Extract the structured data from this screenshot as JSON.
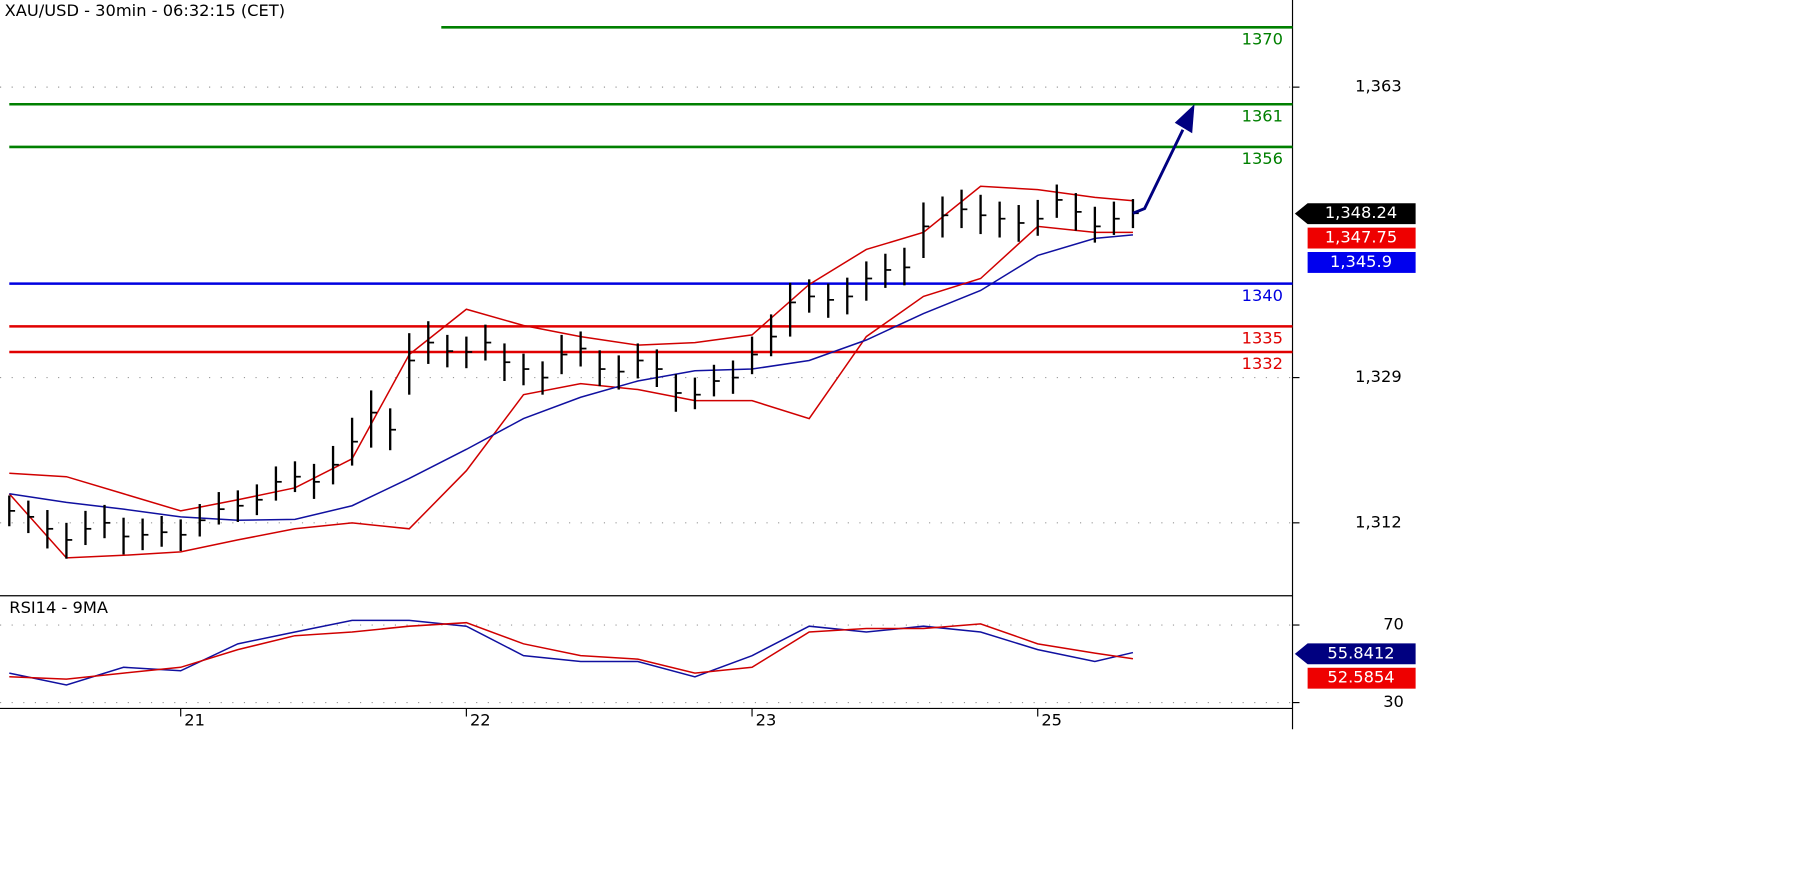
{
  "chart_data": {
    "type": "ohlc",
    "title": "XAU/USD - 30min - 06:32:15 (CET)",
    "categories": [
      null,
      null,
      null,
      null,
      null,
      null,
      null,
      null,
      null,
      "21",
      null,
      null,
      null,
      null,
      null,
      null,
      null,
      null,
      null,
      null,
      null,
      null,
      null,
      null,
      "22",
      null,
      null,
      null,
      null,
      null,
      null,
      null,
      null,
      null,
      null,
      null,
      null,
      null,
      null,
      "23",
      null,
      null,
      null,
      null,
      null,
      null,
      null,
      null,
      null,
      null,
      null,
      null,
      null,
      null,
      "25",
      null,
      null,
      null,
      null,
      null
    ],
    "high": [
      1315.2,
      1314.6,
      1313.5,
      1312.0,
      1313.4,
      1314.1,
      1312.6,
      1312.5,
      1312.8,
      1312.4,
      1314.2,
      1315.6,
      1315.8,
      1316.5,
      1318.6,
      1319.2,
      1318.9,
      1321.0,
      1324.3,
      1327.5,
      1325.4,
      1334.2,
      1335.6,
      1334.0,
      1333.8,
      1335.2,
      1333.0,
      1331.8,
      1330.9,
      1334.0,
      1334.4,
      1332.2,
      1331.6,
      1333.0,
      1332.3,
      1329.4,
      1329.0,
      1330.5,
      1331.0,
      1333.8,
      1336.4,
      1340.1,
      1340.5,
      1340.0,
      1340.7,
      1342.6,
      1343.5,
      1344.2,
      1349.5,
      1350.2,
      1351.0,
      1350.4,
      1349.6,
      1349.2,
      1349.8,
      1351.6,
      1350.6,
      1349.0,
      1349.6,
      1349.9
    ],
    "low": [
      1311.6,
      1310.8,
      1309.0,
      1307.8,
      1309.4,
      1310.2,
      1308.3,
      1308.8,
      1309.2,
      1308.7,
      1310.4,
      1311.8,
      1312.1,
      1312.9,
      1314.6,
      1315.6,
      1314.8,
      1316.5,
      1318.7,
      1320.8,
      1320.5,
      1327.0,
      1330.6,
      1330.2,
      1330.1,
      1331.0,
      1328.6,
      1328.1,
      1327.0,
      1329.4,
      1330.3,
      1328.0,
      1327.6,
      1328.9,
      1327.9,
      1325.0,
      1325.3,
      1326.8,
      1327.1,
      1329.4,
      1331.5,
      1333.8,
      1336.6,
      1336.0,
      1336.4,
      1338.0,
      1339.5,
      1339.8,
      1343.0,
      1345.4,
      1346.5,
      1345.8,
      1345.4,
      1344.9,
      1345.6,
      1347.7,
      1346.2,
      1344.8,
      1345.7,
      1346.5
    ],
    "close": [
      1313.4,
      1312.7,
      1311.3,
      1310.0,
      1311.3,
      1312.0,
      1310.4,
      1310.6,
      1310.9,
      1310.6,
      1312.3,
      1313.6,
      1314.0,
      1314.7,
      1316.8,
      1317.4,
      1316.8,
      1318.8,
      1321.5,
      1324.9,
      1322.9,
      1331.0,
      1333.1,
      1332.1,
      1332.0,
      1333.1,
      1330.8,
      1330.0,
      1329.0,
      1331.7,
      1332.4,
      1330.0,
      1329.7,
      1331.0,
      1330.0,
      1327.2,
      1327.0,
      1328.6,
      1329.0,
      1331.7,
      1333.8,
      1337.8,
      1338.5,
      1338.1,
      1338.5,
      1340.6,
      1341.6,
      1341.9,
      1346.7,
      1348.0,
      1348.7,
      1348.0,
      1347.6,
      1347.1,
      1347.6,
      1349.8,
      1348.4,
      1346.7,
      1347.6,
      1348.24
    ],
    "overlay_x": [
      0,
      3,
      6,
      9,
      12,
      15,
      18,
      21,
      24,
      27,
      30,
      33,
      36,
      39,
      42,
      45,
      48,
      51,
      54,
      57,
      59
    ],
    "lines": [
      {
        "color": "#d00000",
        "values": [
          1317.8,
          1317.4,
          1315.4,
          1313.4,
          1314.7,
          1316.1,
          1319.5,
          1331.7,
          1337.0,
          1335.1,
          1333.8,
          1332.8,
          1333.1,
          1334.0,
          1339.9,
          1344.0,
          1346.0,
          1351.4,
          1351.0,
          1350.1,
          1349.7
        ]
      },
      {
        "color": "#d00000",
        "values": [
          1315.4,
          1307.9,
          1308.2,
          1308.6,
          1310.0,
          1311.3,
          1312.0,
          1311.3,
          1318.1,
          1327.0,
          1328.3,
          1327.6,
          1326.3,
          1326.3,
          1324.2,
          1333.8,
          1338.5,
          1340.6,
          1346.7,
          1346.0,
          1346.0
        ]
      },
      {
        "color": "#1010a0",
        "values": [
          1315.4,
          1314.4,
          1313.6,
          1312.7,
          1312.3,
          1312.4,
          1314.0,
          1317.2,
          1320.6,
          1324.2,
          1326.7,
          1328.6,
          1329.8,
          1330.0,
          1331.0,
          1333.4,
          1336.5,
          1339.2,
          1343.3,
          1345.3,
          1345.7
        ]
      }
    ],
    "ylim": [
      1303.6,
      1373.2
    ],
    "yticks": [
      {
        "value": 1363,
        "label": "1,363"
      },
      {
        "value": 1329,
        "label": "1,329"
      },
      {
        "value": 1312,
        "label": "1,312"
      }
    ],
    "grid": true,
    "levels": [
      {
        "value": 1370,
        "color": "#008000"
      },
      {
        "value": 1361,
        "color": "#008000"
      },
      {
        "value": 1356,
        "color": "#008000"
      },
      {
        "value": 1340,
        "color": "#0000e0"
      },
      {
        "value": 1335,
        "color": "#e00000"
      },
      {
        "value": 1332,
        "color": "#e00000"
      }
    ],
    "price_tags": [
      {
        "value": 1348.24,
        "label": "1,348.24",
        "color": "#000000"
      },
      {
        "value": 1347.75,
        "label": "1,347.75",
        "color": "#ee0000"
      },
      {
        "value": 1345.9,
        "label": "1,345.9",
        "color": "#0000ee"
      }
    ],
    "rsi": {
      "title": "RSI14 - 9MA",
      "ylim": [
        27,
        84.5
      ],
      "yticks": [
        70,
        30
      ],
      "series": [
        {
          "color": "#1010a0",
          "values": [
            45.2,
            39.1,
            48.2,
            46.4,
            60.3,
            66.4,
            72.4,
            72.4,
            69.4,
            54.2,
            51.2,
            51.2,
            43.3,
            54.2,
            69.4,
            66.4,
            69.4,
            66.4,
            57.3,
            51.2,
            55.8
          ]
        },
        {
          "color": "#d00000",
          "values": [
            43.3,
            42.1,
            45.2,
            48.2,
            57.3,
            64.5,
            66.4,
            69.4,
            71.2,
            60.3,
            54.2,
            52.4,
            45.2,
            48.2,
            66.4,
            68.2,
            68.2,
            70.6,
            60.3,
            55.5,
            52.6
          ]
        }
      ],
      "tags": [
        {
          "value": 55.8412,
          "color": "#000080"
        },
        {
          "value": 52.5854,
          "color": "#ee0000"
        }
      ]
    }
  }
}
